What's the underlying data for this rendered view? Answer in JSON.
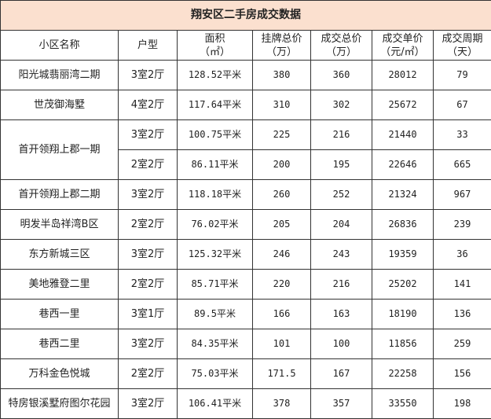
{
  "title": "翔安区二手房成交数据",
  "headers": [
    "小区名称",
    "户型",
    "面积\n（㎡）",
    "挂牌总价\n（万）",
    "成交总价\n（万）",
    "成交单价\n（元/㎡）",
    "成交周期\n（天）"
  ],
  "rows": [
    [
      "阳光城翡丽湾二期",
      "3室2厅",
      "128.52平米",
      "380",
      "360",
      "28012",
      "79"
    ],
    [
      "世茂御海墅",
      "4室2厅",
      "117.64平米",
      "310",
      "302",
      "25672",
      "67"
    ],
    [
      "首开领翔上郡一期",
      "3室2厅",
      "100.75平米",
      "225",
      "216",
      "21440",
      "33"
    ],
    [
      "",
      "2室2厅",
      "86.11平米",
      "200",
      "195",
      "22646",
      "665"
    ],
    [
      "首开领翔上郡二期",
      "3室2厅",
      "118.18平米",
      "260",
      "252",
      "21324",
      "967"
    ],
    [
      "明发半岛祥湾B区",
      "2室2厅",
      "76.02平米",
      "205",
      "204",
      "26836",
      "239"
    ],
    [
      "东方新城三区",
      "3室2厅",
      "125.32平米",
      "246",
      "243",
      "19359",
      "36"
    ],
    [
      "美地雅登二里",
      "2室2厅",
      "85.71平米",
      "220",
      "216",
      "25202",
      "141"
    ],
    [
      "巷西一里",
      "3室1厅",
      "89.5平米",
      "166",
      "163",
      "18190",
      "136"
    ],
    [
      "巷西二里",
      "3室2厅",
      "84.35平米",
      "101",
      "100",
      "11856",
      "259"
    ],
    [
      "万科金色悦城",
      "2室2厅",
      "75.03平米",
      "171.5",
      "167",
      "22258",
      "156"
    ],
    [
      "特房银溪墅府图尔花园",
      "3室2厅",
      "106.41平米",
      "378",
      "357",
      "33550",
      "198"
    ]
  ]
}
